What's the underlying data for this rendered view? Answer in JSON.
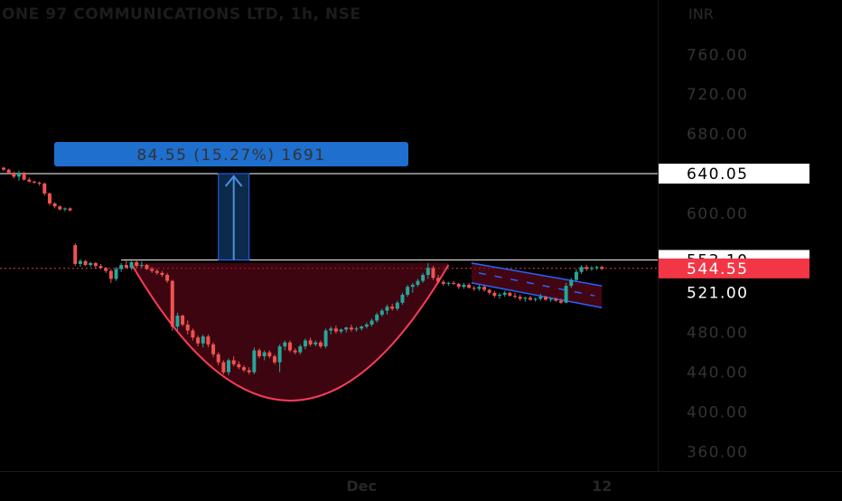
{
  "chart_data": {
    "type": "candlestick",
    "title": "ONE 97 COMMUNICATIONS LTD, 1h, NSE",
    "currency": "INR",
    "ylim": [
      340,
      780
    ],
    "yticks": [
      "760.00",
      "720.00",
      "680.00",
      "640.00",
      "600.00",
      "480.00",
      "440.00",
      "400.00",
      "360.00"
    ],
    "xticks": [
      {
        "label": "Dec",
        "index": 70
      },
      {
        "label": "12",
        "index": 117
      }
    ],
    "candles": [
      [
        646,
        647,
        643,
        644
      ],
      [
        644,
        645,
        640,
        641
      ],
      [
        641,
        642,
        635,
        637
      ],
      [
        637,
        643,
        633,
        641
      ],
      [
        641,
        642,
        633,
        634
      ],
      [
        634,
        636,
        631,
        632
      ],
      [
        632,
        633,
        630,
        631
      ],
      [
        631,
        632,
        628,
        630
      ],
      [
        630,
        631,
        618,
        620
      ],
      [
        620,
        621,
        608,
        610
      ],
      [
        610,
        611,
        605,
        607
      ],
      [
        607,
        608,
        603,
        604
      ],
      [
        604,
        606,
        602,
        605
      ],
      [
        605,
        606,
        602,
        603
      ],
      [
        568,
        570,
        547,
        549
      ],
      [
        549,
        554,
        546,
        552
      ],
      [
        552,
        553,
        547,
        548
      ],
      [
        548,
        551,
        546,
        550
      ],
      [
        550,
        551,
        545,
        547
      ],
      [
        547,
        549,
        544,
        545
      ],
      [
        545,
        546,
        540,
        542
      ],
      [
        542,
        544,
        530,
        534
      ],
      [
        534,
        546,
        532,
        544
      ],
      [
        544,
        550,
        541,
        548
      ],
      [
        548,
        553,
        546,
        545
      ],
      [
        545,
        552,
        543,
        551
      ],
      [
        551,
        553,
        545,
        547
      ],
      [
        547,
        552,
        545,
        548
      ],
      [
        548,
        549,
        543,
        544
      ],
      [
        544,
        546,
        540,
        542
      ],
      [
        542,
        544,
        538,
        540
      ],
      [
        540,
        542,
        536,
        538
      ],
      [
        538,
        540,
        530,
        532
      ],
      [
        532,
        533,
        482,
        486
      ],
      [
        486,
        500,
        482,
        497
      ],
      [
        497,
        498,
        486,
        488
      ],
      [
        488,
        492,
        478,
        482
      ],
      [
        482,
        484,
        472,
        475
      ],
      [
        475,
        477,
        466,
        469
      ],
      [
        469,
        478,
        465,
        476
      ],
      [
        476,
        478,
        465,
        468
      ],
      [
        468,
        470,
        455,
        458
      ],
      [
        458,
        460,
        447,
        450
      ],
      [
        450,
        452,
        438,
        440
      ],
      [
        440,
        454,
        437,
        452
      ],
      [
        452,
        456,
        446,
        448
      ],
      [
        448,
        451,
        443,
        445
      ],
      [
        445,
        447,
        440,
        442
      ],
      [
        442,
        445,
        438,
        440
      ],
      [
        440,
        465,
        438,
        462
      ],
      [
        462,
        464,
        454,
        456
      ],
      [
        456,
        462,
        452,
        460
      ],
      [
        460,
        462,
        454,
        456
      ],
      [
        456,
        458,
        448,
        450
      ],
      [
        450,
        468,
        440,
        466
      ],
      [
        466,
        472,
        462,
        470
      ],
      [
        470,
        472,
        460,
        462
      ],
      [
        462,
        464,
        458,
        460
      ],
      [
        460,
        468,
        458,
        466
      ],
      [
        466,
        474,
        463,
        472
      ],
      [
        472,
        475,
        466,
        468
      ],
      [
        468,
        472,
        466,
        470
      ],
      [
        470,
        472,
        464,
        466
      ],
      [
        466,
        484,
        464,
        482
      ],
      [
        482,
        486,
        478,
        484
      ],
      [
        484,
        487,
        479,
        481
      ],
      [
        481,
        484,
        479,
        483
      ],
      [
        483,
        486,
        480,
        485
      ],
      [
        485,
        488,
        481,
        483
      ],
      [
        483,
        486,
        481,
        484
      ],
      [
        484,
        487,
        482,
        486
      ],
      [
        486,
        490,
        484,
        488
      ],
      [
        488,
        494,
        486,
        492
      ],
      [
        492,
        500,
        490,
        498
      ],
      [
        498,
        504,
        496,
        502
      ],
      [
        502,
        508,
        498,
        506
      ],
      [
        506,
        509,
        502,
        504
      ],
      [
        504,
        512,
        502,
        510
      ],
      [
        510,
        520,
        508,
        518
      ],
      [
        518,
        528,
        516,
        526
      ],
      [
        526,
        530,
        520,
        528
      ],
      [
        528,
        534,
        526,
        532
      ],
      [
        532,
        540,
        530,
        538
      ],
      [
        538,
        550,
        534,
        545
      ],
      [
        545,
        547,
        533,
        535
      ],
      [
        535,
        538,
        529,
        531
      ],
      [
        531,
        533,
        527,
        529
      ],
      [
        529,
        531,
        527,
        530
      ],
      [
        530,
        532,
        528,
        529
      ],
      [
        529,
        530,
        524,
        526
      ],
      [
        526,
        530,
        524,
        528
      ],
      [
        528,
        530,
        524,
        525
      ],
      [
        525,
        527,
        522,
        524
      ],
      [
        524,
        528,
        522,
        526
      ],
      [
        526,
        528,
        521,
        523
      ],
      [
        523,
        524,
        518,
        520
      ],
      [
        520,
        522,
        515,
        517
      ],
      [
        517,
        520,
        514,
        518
      ],
      [
        518,
        522,
        516,
        520
      ],
      [
        520,
        521,
        516,
        517
      ],
      [
        517,
        520,
        514,
        516
      ],
      [
        516,
        518,
        512,
        514
      ],
      [
        514,
        516,
        511,
        515
      ],
      [
        515,
        517,
        512,
        513
      ],
      [
        513,
        515,
        511,
        514
      ],
      [
        514,
        519,
        512,
        516
      ],
      [
        516,
        517,
        512,
        513
      ],
      [
        513,
        515,
        511,
        514
      ],
      [
        514,
        515,
        511,
        512
      ],
      [
        512,
        514,
        509,
        510
      ],
      [
        510,
        530,
        510,
        527
      ],
      [
        527,
        535,
        525,
        533
      ],
      [
        533,
        544,
        531,
        541
      ],
      [
        541,
        548,
        539,
        546
      ],
      [
        546,
        548,
        542,
        544
      ],
      [
        544,
        547,
        542,
        545
      ],
      [
        545,
        547,
        543,
        546
      ],
      [
        546,
        547,
        543,
        544
      ]
    ],
    "levels": {
      "target": "640.05",
      "neckline": "553.10",
      "last_price": "544.55",
      "flag_low": "521.00"
    },
    "measure_label": "84.55 (15.27%) 1691",
    "colors": {
      "up": "#26a69a",
      "down": "#ef5350",
      "cup_stroke": "#ff3b5c",
      "cup_fill": "rgba(110, 10, 30, 0.55)",
      "flag_stroke": "#2962ff",
      "flag_fill": "rgba(110, 10, 30, 0.6)",
      "measure_fill": "#1e6fce",
      "last_price_bg": "#f23645"
    }
  }
}
